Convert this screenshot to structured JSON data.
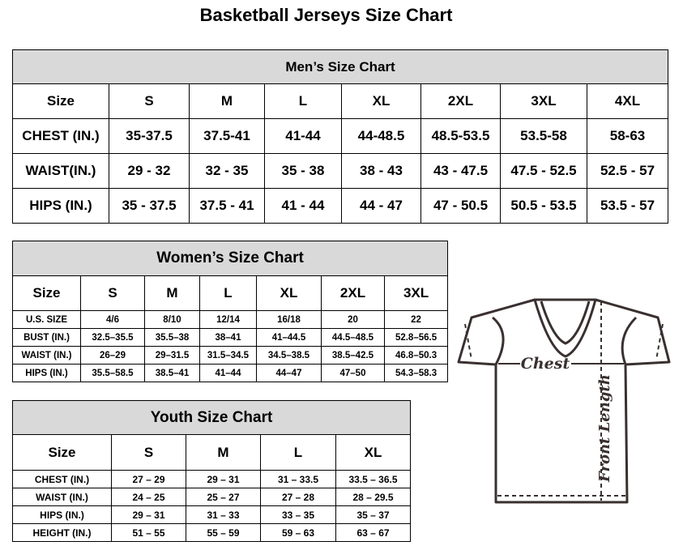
{
  "title": "Basketball Jerseys Size Chart",
  "men": {
    "heading": "Men’s Size Chart",
    "rows": [
      [
        "Size",
        "S",
        "M",
        "L",
        "XL",
        "2XL",
        "3XL",
        "4XL"
      ],
      [
        "CHEST (IN.)",
        "35-37.5",
        "37.5-41",
        "41-44",
        "44-48.5",
        "48.5-53.5",
        "53.5-58",
        "58-63"
      ],
      [
        "WAIST(IN.)",
        "29 - 32",
        "32 - 35",
        "35 - 38",
        "38 - 43",
        "43 - 47.5",
        "47.5 - 52.5",
        "52.5 - 57"
      ],
      [
        "HIPS (IN.)",
        "35 - 37.5",
        "37.5 - 41",
        "41 - 44",
        "44 - 47",
        "47 - 50.5",
        "50.5 - 53.5",
        "53.5 - 57"
      ]
    ]
  },
  "women": {
    "heading": "Women’s Size Chart",
    "rows": [
      [
        "Size",
        "S",
        "M",
        "L",
        "XL",
        "2XL",
        "3XL"
      ],
      [
        "U.S.  SIZE",
        "4/6",
        "8/10",
        "12/14",
        "16/18",
        "20",
        "22"
      ],
      [
        "BUST  (IN.)",
        "32.5–35.5",
        "35.5–38",
        "38–41",
        "41–44.5",
        "44.5–48.5",
        "52.8–56.5"
      ],
      [
        "WAIST  (IN.)",
        "26–29",
        "29–31.5",
        "31.5–34.5",
        "34.5–38.5",
        "38.5–42.5",
        "46.8–50.3"
      ],
      [
        "HIPS  (IN.)",
        "35.5–58.5",
        "38.5–41",
        "41–44",
        "44–47",
        "47–50",
        "54.3–58.3"
      ]
    ]
  },
  "youth": {
    "heading": "Youth Size Chart",
    "rows": [
      [
        "Size",
        "S",
        "M",
        "L",
        "XL"
      ],
      [
        "CHEST  (IN.)",
        "27  –  29",
        "29  –  31",
        "31  –  33.5",
        "33.5  –  36.5"
      ],
      [
        "WAIST  (IN.)",
        "24  –  25",
        "25  –  27",
        "27  –  28",
        "28  –  29.5"
      ],
      [
        "HIPS  (IN.)",
        "29  –  31",
        "31  –  33",
        "33  –  35",
        "35  –  37"
      ],
      [
        "HEIGHT  (IN.)",
        "51  –  55",
        "55  –  59",
        "59  –  63",
        "63  –  67"
      ]
    ]
  },
  "diagram": {
    "chest_label": "Chest",
    "length_label": "Front Length",
    "line_color": "#3a3030"
  }
}
